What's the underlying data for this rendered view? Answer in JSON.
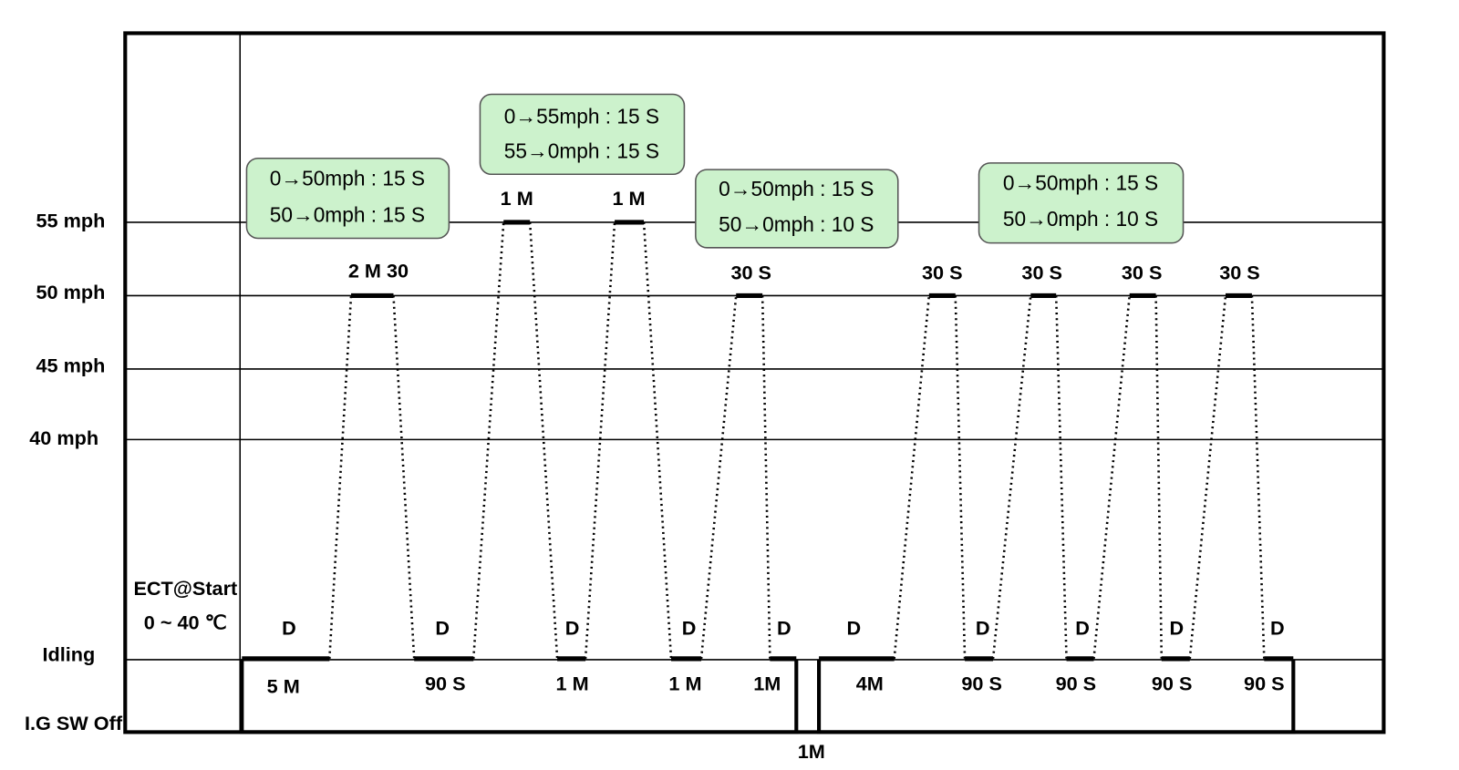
{
  "y_labels": [
    "55 mph",
    "50 mph",
    "45 mph",
    "40 mph",
    "Idling",
    "I.G SW Off"
  ],
  "start_condition": [
    "ECT@Start",
    "0 ~ 40 ℃"
  ],
  "boxes": [
    {
      "lines": [
        "0→50mph : 15 S",
        "50→0mph : 15 S"
      ]
    },
    {
      "lines": [
        "0→55mph : 15 S",
        "55→0mph : 15 S"
      ]
    },
    {
      "lines": [
        "0→50mph : 15 S",
        "50→0mph : 10 S"
      ]
    },
    {
      "lines": [
        "0→50mph : 15 S",
        "50→0mph : 10 S"
      ]
    }
  ],
  "cruise_labels": [
    "2 M 30",
    "1 M",
    "1 M",
    "30 S",
    "30 S",
    "30 S",
    "30 S",
    "30 S"
  ],
  "idle_labels": [
    "5 M",
    "90 S",
    "1 M",
    "1 M",
    "1M",
    "4M",
    "90 S",
    "90 S",
    "90 S",
    "90 S"
  ],
  "drive_labels": [
    "D",
    "D",
    "D",
    "D",
    "D",
    "D",
    "D",
    "D",
    "D",
    "D"
  ],
  "off_label": "1M"
}
